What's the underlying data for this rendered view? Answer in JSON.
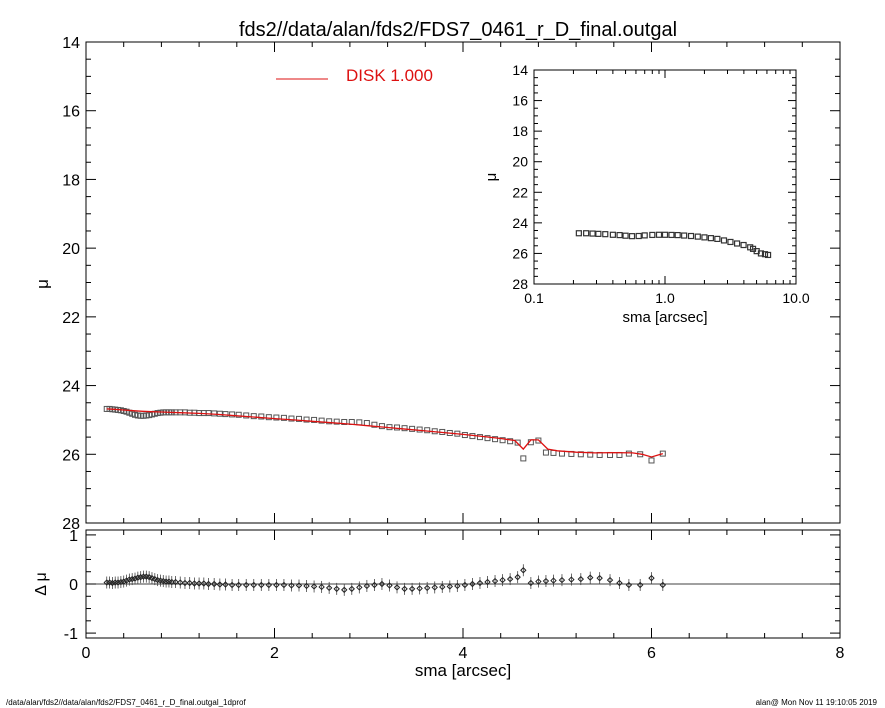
{
  "title": "fds2//data/alan/fds2/FDS7_0461_r_D_final.outgal",
  "footer": {
    "left": "/data/alan/fds2//data/alan/fds2/FDS7_0461_r_D_final.outgal_1dprof",
    "right": "alan@  Mon Nov 11 19:10:05 2019"
  },
  "colors": {
    "model": "#dd1111",
    "points": "#555555",
    "axes": "#000000"
  },
  "chart_data": [
    {
      "type": "scatter",
      "ylabel": "μ",
      "xlim": [
        0,
        8
      ],
      "ylim": [
        28,
        14
      ],
      "y_inverted": true,
      "ytick_labels": [
        "14",
        "16",
        "18",
        "20",
        "22",
        "24",
        "26",
        "28"
      ],
      "legend": {
        "label": "DISK  1.000",
        "placement": "top-center"
      },
      "series": [
        {
          "marker": "square",
          "x": [
            0.22,
            0.25,
            0.28,
            0.31,
            0.34,
            0.37,
            0.4,
            0.43,
            0.46,
            0.49,
            0.52,
            0.55,
            0.58,
            0.61,
            0.64,
            0.67,
            0.7,
            0.73,
            0.76,
            0.79,
            0.82,
            0.85,
            0.88,
            0.91,
            0.95,
            1.0,
            1.05,
            1.1,
            1.15,
            1.2,
            1.25,
            1.3,
            1.36,
            1.42,
            1.48,
            1.55,
            1.62,
            1.7,
            1.78,
            1.86,
            1.94,
            2.02,
            2.1,
            2.18,
            2.26,
            2.34,
            2.42,
            2.5,
            2.58,
            2.66,
            2.74,
            2.82,
            2.9,
            2.98,
            3.06,
            3.14,
            3.22,
            3.3,
            3.38,
            3.46,
            3.54,
            3.62,
            3.7,
            3.78,
            3.86,
            3.94,
            4.02,
            4.1,
            4.18,
            4.26,
            4.34,
            4.42,
            4.5,
            4.58,
            4.64,
            4.72,
            4.8,
            4.88,
            4.96,
            5.05,
            5.15,
            5.25,
            5.35,
            5.45,
            5.56,
            5.66,
            5.76,
            5.88,
            6.0,
            6.12
          ],
          "y": [
            24.68,
            24.68,
            24.69,
            24.7,
            24.71,
            24.72,
            24.74,
            24.76,
            24.79,
            24.82,
            24.85,
            24.87,
            24.88,
            24.88,
            24.87,
            24.86,
            24.84,
            24.82,
            24.8,
            24.79,
            24.78,
            24.78,
            24.78,
            24.78,
            24.78,
            24.78,
            24.78,
            24.79,
            24.79,
            24.8,
            24.8,
            24.8,
            24.81,
            24.82,
            24.83,
            24.84,
            24.85,
            24.87,
            24.89,
            24.9,
            24.92,
            24.93,
            24.94,
            24.96,
            24.97,
            24.99,
            25.0,
            25.02,
            25.04,
            25.05,
            25.06,
            25.06,
            25.07,
            25.09,
            25.14,
            25.18,
            25.21,
            25.22,
            25.24,
            25.26,
            25.28,
            25.3,
            25.33,
            25.35,
            25.38,
            25.4,
            25.44,
            25.47,
            25.5,
            25.53,
            25.56,
            25.59,
            25.62,
            25.66,
            26.12,
            25.65,
            25.6,
            25.95,
            25.96,
            25.98,
            25.99,
            26.0,
            26.01,
            26.02,
            26.02,
            26.02,
            25.98,
            26.0,
            26.18,
            25.98
          ]
        },
        {
          "name": "DISK  1.000",
          "type": "line",
          "x": [
            0.22,
            0.3,
            0.4,
            0.5,
            0.6,
            0.7,
            0.8,
            0.9,
            1.0,
            1.2,
            1.4,
            1.6,
            1.8,
            2.0,
            2.2,
            2.4,
            2.6,
            2.8,
            3.0,
            3.2,
            3.4,
            3.6,
            3.8,
            4.0,
            4.2,
            4.4,
            4.55,
            4.64,
            4.72,
            4.8,
            4.9,
            5.0,
            5.2,
            5.4,
            5.6,
            5.8,
            5.9,
            6.0,
            6.12
          ],
          "y": [
            24.68,
            24.69,
            24.71,
            24.73,
            24.75,
            24.76,
            24.77,
            24.78,
            24.79,
            24.81,
            24.84,
            24.88,
            24.92,
            24.96,
            25.0,
            25.04,
            25.08,
            25.12,
            25.17,
            25.22,
            25.27,
            25.32,
            25.37,
            25.42,
            25.48,
            25.54,
            25.6,
            25.85,
            25.58,
            25.58,
            25.85,
            25.9,
            25.94,
            25.96,
            25.95,
            25.96,
            26.0,
            26.08,
            25.98
          ]
        }
      ]
    },
    {
      "type": "scatter",
      "ylabel": "μ",
      "xlabel": "sma [arcsec]",
      "xscale": "log",
      "xlim": [
        0.1,
        10
      ],
      "ylim": [
        28,
        14
      ],
      "y_inverted": true,
      "xtick_labels": [
        "0.1",
        "1.0",
        "10.0"
      ],
      "ytick_labels": [
        "14",
        "16",
        "18",
        "20",
        "22",
        "24",
        "26",
        "28"
      ],
      "series": [
        {
          "marker": "square",
          "x": [
            0.22,
            0.25,
            0.28,
            0.31,
            0.35,
            0.4,
            0.45,
            0.5,
            0.56,
            0.63,
            0.7,
            0.8,
            0.9,
            1.0,
            1.12,
            1.25,
            1.4,
            1.58,
            1.78,
            2.0,
            2.24,
            2.51,
            2.82,
            3.16,
            3.55,
            3.98,
            4.47,
            4.7,
            5.01,
            5.4,
            5.8,
            6.12
          ],
          "y": [
            24.68,
            24.68,
            24.7,
            24.72,
            24.74,
            24.78,
            24.8,
            24.84,
            24.87,
            24.86,
            24.82,
            24.79,
            24.78,
            24.78,
            24.79,
            24.8,
            24.83,
            24.86,
            24.9,
            24.95,
            25.0,
            25.05,
            25.15,
            25.25,
            25.35,
            25.45,
            25.6,
            25.7,
            25.85,
            26.0,
            26.05,
            26.1
          ]
        }
      ]
    },
    {
      "type": "scatter",
      "ylabel": "Δ μ",
      "xlabel": "sma [arcsec]",
      "xlim": [
        0,
        8
      ],
      "ylim": [
        -1.1,
        1.1
      ],
      "xtick_labels": [
        "0",
        "2",
        "4",
        "6",
        "8"
      ],
      "ytick_labels": [
        "1",
        "0",
        "-1"
      ],
      "series": [
        {
          "marker": "diamond-errorbar",
          "x": [
            0.22,
            0.25,
            0.28,
            0.31,
            0.34,
            0.37,
            0.4,
            0.43,
            0.46,
            0.49,
            0.52,
            0.55,
            0.58,
            0.61,
            0.64,
            0.67,
            0.7,
            0.73,
            0.76,
            0.79,
            0.82,
            0.85,
            0.88,
            0.91,
            0.95,
            1.0,
            1.05,
            1.1,
            1.15,
            1.2,
            1.25,
            1.3,
            1.36,
            1.42,
            1.48,
            1.55,
            1.62,
            1.7,
            1.78,
            1.86,
            1.94,
            2.02,
            2.1,
            2.18,
            2.26,
            2.34,
            2.42,
            2.5,
            2.58,
            2.66,
            2.74,
            2.82,
            2.9,
            2.98,
            3.06,
            3.14,
            3.22,
            3.3,
            3.38,
            3.46,
            3.54,
            3.62,
            3.7,
            3.78,
            3.86,
            3.94,
            4.02,
            4.1,
            4.18,
            4.26,
            4.34,
            4.42,
            4.5,
            4.58,
            4.64,
            4.72,
            4.8,
            4.88,
            4.96,
            5.05,
            5.15,
            5.25,
            5.35,
            5.45,
            5.56,
            5.66,
            5.76,
            5.88,
            6.0,
            6.12
          ],
          "y": [
            0.03,
            0.03,
            0.02,
            0.03,
            0.03,
            0.04,
            0.05,
            0.07,
            0.09,
            0.1,
            0.11,
            0.13,
            0.14,
            0.15,
            0.15,
            0.14,
            0.12,
            0.1,
            0.08,
            0.07,
            0.06,
            0.05,
            0.05,
            0.04,
            0.04,
            0.03,
            0.02,
            0.02,
            0.01,
            0.01,
            0.01,
            0.0,
            0.0,
            -0.01,
            -0.01,
            -0.02,
            -0.02,
            -0.02,
            -0.02,
            -0.02,
            -0.02,
            -0.02,
            -0.02,
            -0.03,
            -0.03,
            -0.04,
            -0.05,
            -0.06,
            -0.08,
            -0.1,
            -0.12,
            -0.1,
            -0.07,
            -0.04,
            -0.02,
            0.0,
            -0.03,
            -0.07,
            -0.1,
            -0.1,
            -0.09,
            -0.08,
            -0.07,
            -0.06,
            -0.05,
            -0.04,
            -0.02,
            0.0,
            0.02,
            0.04,
            0.06,
            0.08,
            0.1,
            0.14,
            0.28,
            0.02,
            0.05,
            0.06,
            0.07,
            0.08,
            0.09,
            0.1,
            0.13,
            0.12,
            0.08,
            0.02,
            -0.02,
            -0.02,
            0.12,
            -0.02
          ]
        }
      ]
    }
  ]
}
